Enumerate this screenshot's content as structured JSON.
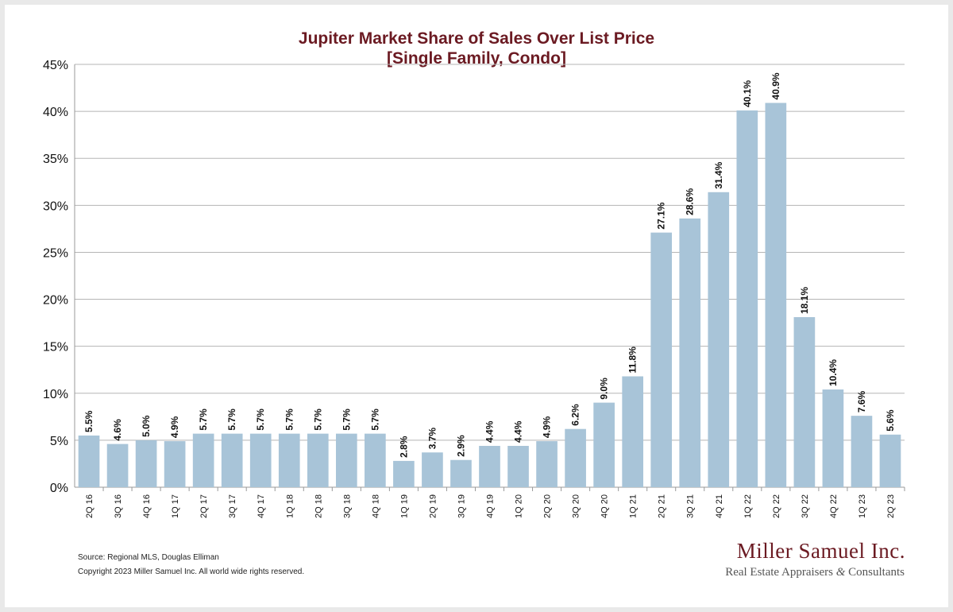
{
  "chart_data": {
    "type": "bar",
    "title": "Jupiter Market Share of Sales Over List Price",
    "subtitle": "[Single Family, Condo]",
    "xlabel": "",
    "ylabel": "",
    "ylim": [
      0,
      45
    ],
    "yticks": [
      "0%",
      "5%",
      "10%",
      "15%",
      "20%",
      "25%",
      "30%",
      "35%",
      "40%",
      "45%"
    ],
    "grid": true,
    "bar_color": "#a8c4d8",
    "categories": [
      "2Q 16",
      "3Q 16",
      "4Q 16",
      "1Q 17",
      "2Q 17",
      "3Q 17",
      "4Q 17",
      "1Q 18",
      "2Q 18",
      "3Q 18",
      "4Q 18",
      "1Q 19",
      "2Q 19",
      "3Q 19",
      "4Q 19",
      "1Q 20",
      "2Q 20",
      "3Q 20",
      "4Q 20",
      "1Q 21",
      "2Q 21",
      "3Q 21",
      "4Q 21",
      "1Q 22",
      "2Q 22",
      "3Q 22",
      "4Q 22",
      "1Q 23",
      "2Q 23"
    ],
    "values": [
      5.5,
      4.6,
      5.0,
      4.9,
      5.7,
      5.7,
      5.7,
      5.7,
      5.7,
      5.7,
      5.7,
      2.8,
      3.7,
      2.9,
      4.4,
      4.4,
      4.9,
      6.2,
      9.0,
      11.8,
      27.1,
      28.6,
      31.4,
      40.1,
      40.9,
      18.1,
      10.4,
      7.6,
      5.6
    ],
    "labels": [
      "5.5%",
      "4.6%",
      "5.0%",
      "4.9%",
      "5.7%",
      "5.7%",
      "5.7%",
      "5.7%",
      "5.7%",
      "5.7%",
      "5.7%",
      "2.8%",
      "3.7%",
      "2.9%",
      "4.4%",
      "4.4%",
      "4.9%",
      "6.2%",
      "9.0%",
      "11.8%",
      "27.1%",
      "28.6%",
      "31.4%",
      "40.1%",
      "40.9%",
      "18.1%",
      "10.4%",
      "7.6%",
      "5.6%"
    ]
  },
  "footer": {
    "source": "Source: Regional MLS, Douglas Elliman",
    "copyright": "Copyright 2023 Miller Samuel Inc.  All world wide rights reserved."
  },
  "brand": {
    "name": "Miller Samuel Inc.",
    "tagline_before": "Real Estate Appraisers ",
    "tagline_amp": "&",
    "tagline_after": " Consultants",
    "color": "#6b1a22"
  }
}
